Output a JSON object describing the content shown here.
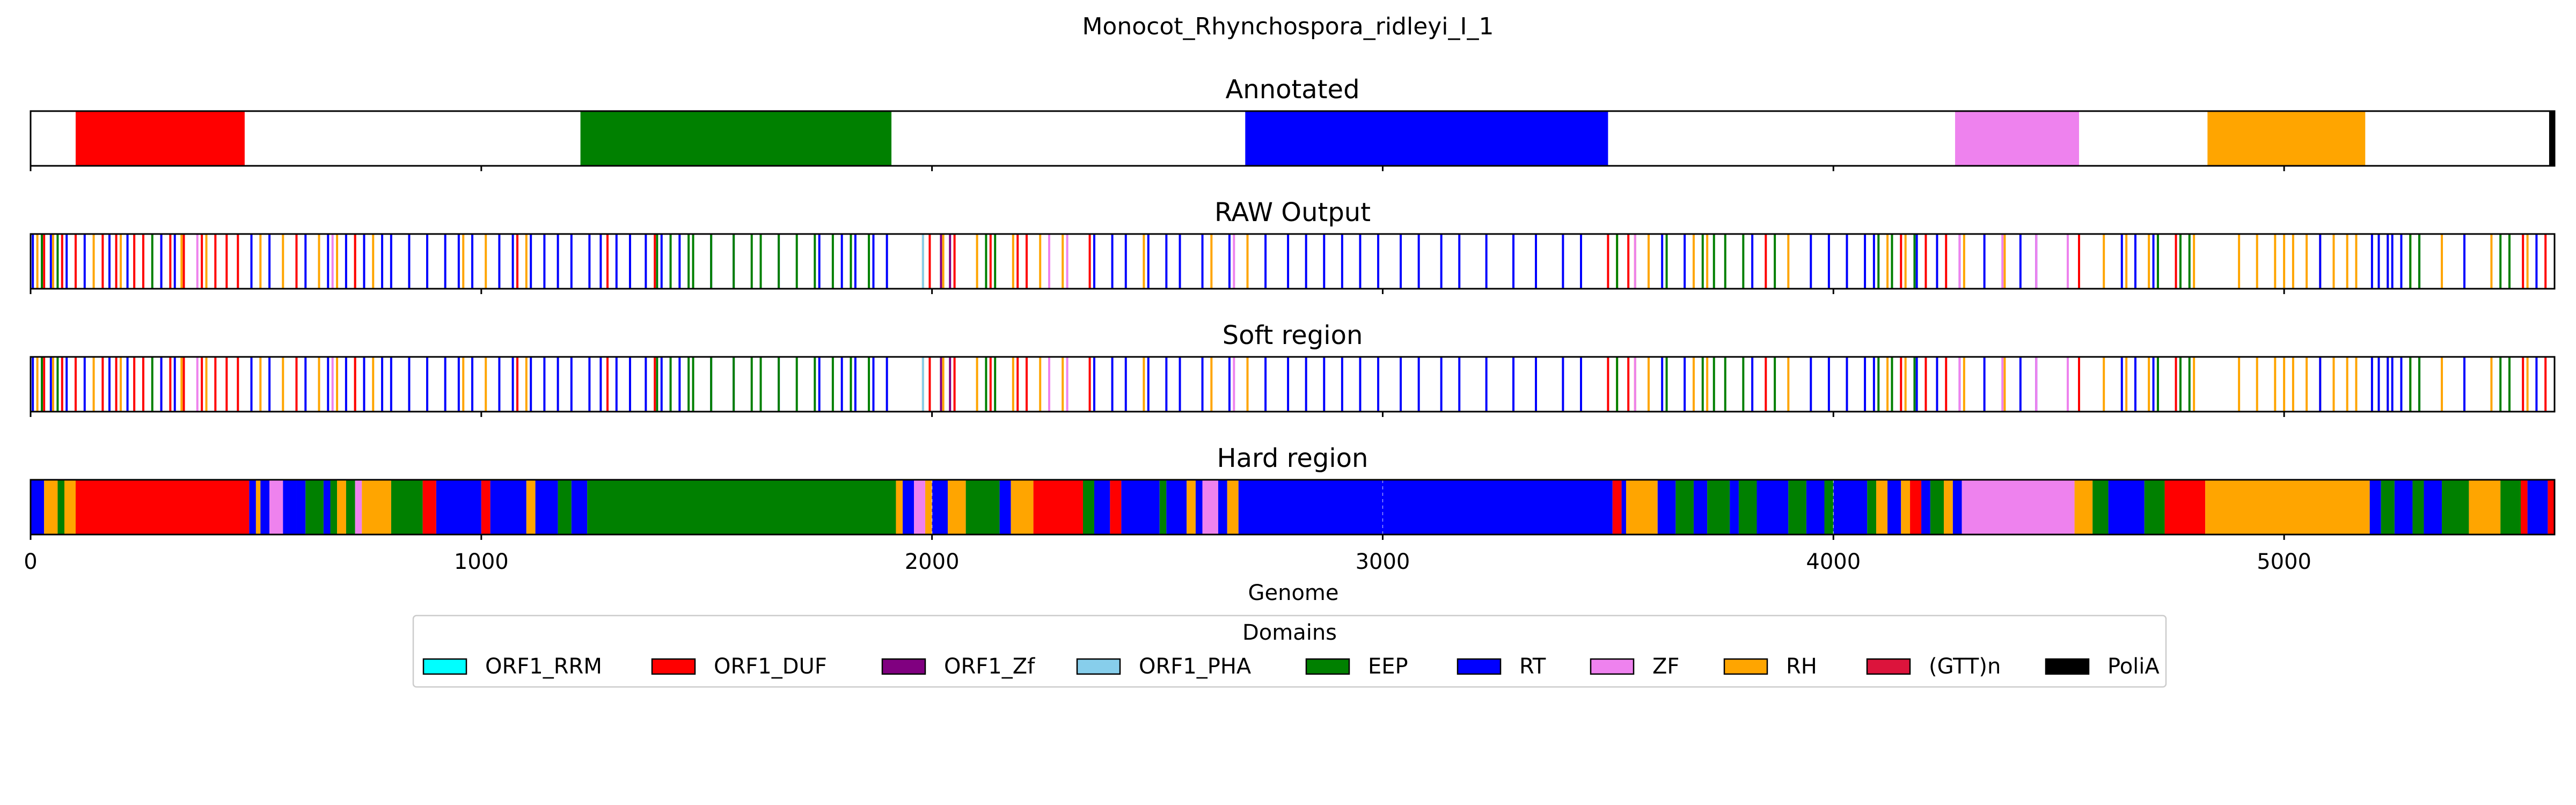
{
  "chart_data": {
    "type": "bar",
    "title": "Monocot_Rhynchospora_ridleyi_I_1",
    "xlabel": "Genome",
    "xlim": [
      0,
      5600
    ],
    "xticks": [
      "0",
      "1000",
      "2000",
      "3000",
      "4000",
      "5000"
    ],
    "legend": {
      "title": "Domains",
      "placement": "bottom-center",
      "entries": [
        {
          "label": "ORF1_RRM",
          "color": "#00FFFF"
        },
        {
          "label": "ORF1_DUF",
          "color": "#FF0000"
        },
        {
          "label": "ORF1_Zf",
          "color": "#800080"
        },
        {
          "label": "ORF1_PHA",
          "color": "#87CEEB"
        },
        {
          "label": "EEP",
          "color": "#008000"
        },
        {
          "label": "RT",
          "color": "#0000FF"
        },
        {
          "label": "ZF",
          "color": "#EE82EE"
        },
        {
          "label": "RH",
          "color": "#FFA500"
        },
        {
          "label": "(GTT)n",
          "color": "#DC143C"
        },
        {
          "label": "PoliA",
          "color": "#000000"
        }
      ]
    },
    "panels": [
      {
        "title": "Annotated",
        "style": "blocks",
        "segments": [
          {
            "domain": "ORF1_DUF",
            "start": 100,
            "end": 475
          },
          {
            "domain": "EEP",
            "start": 1220,
            "end": 1910
          },
          {
            "domain": "RT",
            "start": 2695,
            "end": 3500
          },
          {
            "domain": "ZF",
            "start": 4270,
            "end": 4545
          },
          {
            "domain": "RH",
            "start": 4830,
            "end": 5180
          },
          {
            "domain": "PoliA",
            "start": 5588,
            "end": 5600
          }
        ]
      },
      {
        "title": "RAW Output",
        "style": "lines",
        "hits": [
          {
            "domain": "RH",
            "positions": [
              15,
              50,
              140,
              200,
              250,
              335,
              390,
              510,
              560,
              640,
              680,
              720,
              760,
              960,
              1010,
              1100,
              1980,
              2025,
              2100,
              2180,
              2240,
              2290,
              2470,
              2620,
              2700,
              3520,
              3560,
              3590,
              3690,
              3720,
              3900,
              4120,
              4160,
              4290,
              4380,
              4600,
              4650,
              4700,
              4720,
              4800,
              4900,
              4940,
              4980,
              5000,
              5020,
              5050,
              5080,
              5110,
              5140,
              5160,
              5230,
              5280,
              5350,
              5460,
              5500,
              5540
            ]
          },
          {
            "domain": "ORF1_DUF",
            "positions": [
              30,
              70,
              100,
              160,
              190,
              230,
              250,
              290,
              310,
              340,
              380,
              410,
              435,
              460,
              590,
              720,
              1080,
              1280,
              1385,
              1995,
              2050,
              2130,
              2190,
              2210,
              2350,
              3500,
              3545,
              3850,
              4150,
              4205,
              4250,
              4545,
              4720,
              4760,
              5530,
              5580
            ]
          },
          {
            "domain": "RT",
            "positions": [
              5,
              45,
              80,
              120,
              175,
              215,
              290,
              320,
              490,
              530,
              610,
              660,
              700,
              740,
              780,
              800,
              840,
              880,
              920,
              950,
              980,
              1040,
              1070,
              1110,
              1140,
              1170,
              1200,
              1240,
              1265,
              1300,
              1330,
              1365,
              1400,
              1440,
              1510,
              1560,
              1660,
              1750,
              1800,
              1830,
              1870,
              1900,
              2360,
              2400,
              2430,
              2480,
              2520,
              2550,
              2600,
              2660,
              2740,
              2790,
              2830,
              2870,
              2910,
              2950,
              2990,
              3040,
              3080,
              3130,
              3170,
              3230,
              3290,
              3340,
              3400,
              3440,
              3620,
              3670,
              3820,
              3950,
              3990,
              4030,
              4070,
              4090,
              4185,
              4230,
              4280,
              4335,
              4415,
              4450,
              4640,
              4670,
              4710,
              5080,
              5195,
              5210,
              5230,
              5240,
              5260,
              5300,
              5400,
              5560
            ]
          },
          {
            "domain": "EEP",
            "positions": [
              25,
              60,
              270,
              1470,
              1390,
              1420,
              1460,
              1510,
              1560,
              1600,
              1620,
              1660,
              1700,
              1740,
              1780,
              1820,
              1860,
              2120,
              2140,
              3520,
              3630,
              3710,
              3735,
              3760,
              3800,
              3870,
              4100,
              4130,
              4180,
              4720,
              4770,
              4790,
              5280,
              5300,
              5480,
              5500
            ]
          },
          {
            "domain": "ZF",
            "positions": [
              370,
              670,
              2260,
              2300,
              2670,
              3560,
              4280,
              4375,
              4450,
              4520
            ]
          },
          {
            "domain": "ORF1_Zf",
            "positions": [
              2020,
              2040
            ]
          },
          {
            "domain": "ORF1_PHA",
            "positions": [
              1980
            ]
          }
        ]
      },
      {
        "title": "Soft region",
        "style": "lines",
        "same_as": "RAW Output"
      },
      {
        "title": "Hard region",
        "style": "blocks",
        "segments": [
          {
            "domain": "RT",
            "start": 0,
            "end": 30
          },
          {
            "domain": "RH",
            "start": 30,
            "end": 60
          },
          {
            "domain": "EEP",
            "start": 60,
            "end": 75
          },
          {
            "domain": "RH",
            "start": 75,
            "end": 100
          },
          {
            "domain": "ORF1_DUF",
            "start": 100,
            "end": 485
          },
          {
            "domain": "RT",
            "start": 485,
            "end": 500
          },
          {
            "domain": "RH",
            "start": 500,
            "end": 510
          },
          {
            "domain": "RT",
            "start": 510,
            "end": 530
          },
          {
            "domain": "ZF",
            "start": 530,
            "end": 560
          },
          {
            "domain": "RT",
            "start": 560,
            "end": 590
          },
          {
            "domain": "RT",
            "start": 590,
            "end": 610
          },
          {
            "domain": "EEP",
            "start": 610,
            "end": 650
          },
          {
            "domain": "RT",
            "start": 650,
            "end": 665
          },
          {
            "domain": "EEP",
            "start": 665,
            "end": 680
          },
          {
            "domain": "RH",
            "start": 680,
            "end": 700
          },
          {
            "domain": "EEP",
            "start": 700,
            "end": 720
          },
          {
            "domain": "ZF",
            "start": 720,
            "end": 735
          },
          {
            "domain": "RH",
            "start": 735,
            "end": 800
          },
          {
            "domain": "EEP",
            "start": 800,
            "end": 870
          },
          {
            "domain": "ORF1_DUF",
            "start": 870,
            "end": 900
          },
          {
            "domain": "RT",
            "start": 900,
            "end": 1000
          },
          {
            "domain": "ORF1_DUF",
            "start": 1000,
            "end": 1020
          },
          {
            "domain": "RT",
            "start": 1020,
            "end": 1100
          },
          {
            "domain": "RH",
            "start": 1100,
            "end": 1120
          },
          {
            "domain": "RT",
            "start": 1120,
            "end": 1170
          },
          {
            "domain": "EEP",
            "start": 1170,
            "end": 1200
          },
          {
            "domain": "RT",
            "start": 1200,
            "end": 1235
          },
          {
            "domain": "EEP",
            "start": 1235,
            "end": 1920
          },
          {
            "domain": "RH",
            "start": 1920,
            "end": 1935
          },
          {
            "domain": "RT",
            "start": 1935,
            "end": 1960
          },
          {
            "domain": "ZF",
            "start": 1960,
            "end": 1985
          },
          {
            "domain": "RH",
            "start": 1985,
            "end": 2000
          },
          {
            "domain": "RT",
            "start": 2000,
            "end": 2035
          },
          {
            "domain": "RH",
            "start": 2035,
            "end": 2075
          },
          {
            "domain": "EEP",
            "start": 2075,
            "end": 2150
          },
          {
            "domain": "RT",
            "start": 2150,
            "end": 2175
          },
          {
            "domain": "RH",
            "start": 2175,
            "end": 2225
          },
          {
            "domain": "ORF1_DUF",
            "start": 2225,
            "end": 2335
          },
          {
            "domain": "EEP",
            "start": 2335,
            "end": 2360
          },
          {
            "domain": "RT",
            "start": 2360,
            "end": 2395
          },
          {
            "domain": "ORF1_DUF",
            "start": 2395,
            "end": 2420
          },
          {
            "domain": "RT",
            "start": 2420,
            "end": 2505
          },
          {
            "domain": "EEP",
            "start": 2505,
            "end": 2520
          },
          {
            "domain": "RT",
            "start": 2520,
            "end": 2565
          },
          {
            "domain": "RH",
            "start": 2565,
            "end": 2585
          },
          {
            "domain": "RT",
            "start": 2585,
            "end": 2600
          },
          {
            "domain": "ZF",
            "start": 2600,
            "end": 2635
          },
          {
            "domain": "RT",
            "start": 2635,
            "end": 2655
          },
          {
            "domain": "RH",
            "start": 2655,
            "end": 2680
          },
          {
            "domain": "RT",
            "start": 2680,
            "end": 3510
          },
          {
            "domain": "ORF1_DUF",
            "start": 3510,
            "end": 3530
          },
          {
            "domain": "RT",
            "start": 3530,
            "end": 3540
          },
          {
            "domain": "RH",
            "start": 3540,
            "end": 3610
          },
          {
            "domain": "RT",
            "start": 3610,
            "end": 3650
          },
          {
            "domain": "EEP",
            "start": 3650,
            "end": 3690
          },
          {
            "domain": "RT",
            "start": 3690,
            "end": 3720
          },
          {
            "domain": "EEP",
            "start": 3720,
            "end": 3770
          },
          {
            "domain": "RT",
            "start": 3770,
            "end": 3790
          },
          {
            "domain": "EEP",
            "start": 3790,
            "end": 3830
          },
          {
            "domain": "RT",
            "start": 3830,
            "end": 3900
          },
          {
            "domain": "EEP",
            "start": 3900,
            "end": 3940
          },
          {
            "domain": "RT",
            "start": 3940,
            "end": 3980
          },
          {
            "domain": "EEP",
            "start": 3980,
            "end": 4000
          },
          {
            "domain": "RT",
            "start": 4000,
            "end": 4075
          },
          {
            "domain": "EEP",
            "start": 4075,
            "end": 4095
          },
          {
            "domain": "RH",
            "start": 4095,
            "end": 4120
          },
          {
            "domain": "RT",
            "start": 4120,
            "end": 4150
          },
          {
            "domain": "RH",
            "start": 4150,
            "end": 4170
          },
          {
            "domain": "ORF1_DUF",
            "start": 4170,
            "end": 4195
          },
          {
            "domain": "RT",
            "start": 4195,
            "end": 4215
          },
          {
            "domain": "EEP",
            "start": 4215,
            "end": 4245
          },
          {
            "domain": "RH",
            "start": 4245,
            "end": 4265
          },
          {
            "domain": "RT",
            "start": 4265,
            "end": 4285
          },
          {
            "domain": "ZF",
            "start": 4285,
            "end": 4535
          },
          {
            "domain": "RH",
            "start": 4535,
            "end": 4575
          },
          {
            "domain": "EEP",
            "start": 4575,
            "end": 4610
          },
          {
            "domain": "RT",
            "start": 4610,
            "end": 4690
          },
          {
            "domain": "EEP",
            "start": 4690,
            "end": 4735
          },
          {
            "domain": "ORF1_DUF",
            "start": 4735,
            "end": 4825
          },
          {
            "domain": "RH",
            "start": 4825,
            "end": 5190
          },
          {
            "domain": "RT",
            "start": 5190,
            "end": 5215
          },
          {
            "domain": "EEP",
            "start": 5215,
            "end": 5245
          },
          {
            "domain": "RT",
            "start": 5245,
            "end": 5285
          },
          {
            "domain": "EEP",
            "start": 5285,
            "end": 5310
          },
          {
            "domain": "RT",
            "start": 5310,
            "end": 5350
          },
          {
            "domain": "EEP",
            "start": 5350,
            "end": 5410
          },
          {
            "domain": "RH",
            "start": 5410,
            "end": 5480
          },
          {
            "domain": "EEP",
            "start": 5480,
            "end": 5525
          },
          {
            "domain": "ORF1_DUF",
            "start": 5525,
            "end": 5540
          },
          {
            "domain": "RT",
            "start": 5540,
            "end": 5585
          },
          {
            "domain": "ORF1_DUF",
            "start": 5585,
            "end": 5600
          }
        ]
      }
    ]
  }
}
